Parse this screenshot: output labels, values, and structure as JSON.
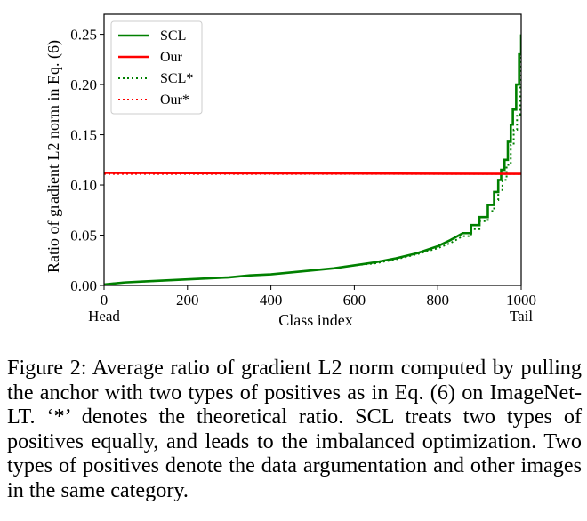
{
  "chart_data": {
    "type": "line",
    "xlabel": "Class index",
    "ylabel": "Ratio of gradient L2 norm in Eq. (6)",
    "xlim": [
      0,
      1000
    ],
    "ylim": [
      0,
      0.27
    ],
    "xticks": [
      0,
      200,
      400,
      600,
      800,
      1000
    ],
    "xtick_labels": [
      "0",
      "200",
      "400",
      "600",
      "800",
      "1000"
    ],
    "yticks": [
      0.0,
      0.05,
      0.1,
      0.15,
      0.2,
      0.25
    ],
    "ytick_labels": [
      "0.00",
      "0.05",
      "0.10",
      "0.15",
      "0.20",
      "0.25"
    ],
    "x_annotations": [
      {
        "x": 0,
        "text": "Head"
      },
      {
        "x": 1000,
        "text": "Tail"
      }
    ],
    "legend_position": "upper-left",
    "series": [
      {
        "name": "SCL",
        "color": "#008000",
        "style": "solid",
        "x": [
          0,
          50,
          100,
          150,
          200,
          250,
          300,
          350,
          400,
          450,
          500,
          550,
          600,
          650,
          700,
          750,
          800,
          830,
          860,
          880,
          900,
          920,
          935,
          945,
          952,
          960,
          968,
          975,
          980,
          988,
          995,
          1000
        ],
        "values": [
          0.001,
          0.003,
          0.004,
          0.005,
          0.006,
          0.007,
          0.008,
          0.01,
          0.011,
          0.013,
          0.015,
          0.017,
          0.02,
          0.023,
          0.027,
          0.032,
          0.039,
          0.045,
          0.052,
          0.06,
          0.068,
          0.08,
          0.093,
          0.105,
          0.115,
          0.125,
          0.143,
          0.16,
          0.175,
          0.2,
          0.23,
          0.25
        ]
      },
      {
        "name": "Our",
        "color": "#ff0000",
        "style": "solid",
        "x": [
          0,
          1000
        ],
        "values": [
          0.112,
          0.111
        ]
      },
      {
        "name": "SCL*",
        "color": "#008000",
        "style": "dotted",
        "x": [
          0,
          50,
          100,
          150,
          200,
          250,
          300,
          350,
          400,
          450,
          500,
          550,
          600,
          650,
          700,
          750,
          800,
          830,
          860,
          880,
          900,
          920,
          935,
          945,
          955,
          965,
          975,
          982,
          990,
          997,
          1000
        ],
        "values": [
          0.001,
          0.003,
          0.004,
          0.005,
          0.006,
          0.007,
          0.008,
          0.01,
          0.011,
          0.013,
          0.015,
          0.017,
          0.02,
          0.022,
          0.026,
          0.031,
          0.037,
          0.042,
          0.049,
          0.056,
          0.064,
          0.074,
          0.085,
          0.095,
          0.105,
          0.12,
          0.14,
          0.155,
          0.17,
          0.2,
          0.23
        ]
      },
      {
        "name": "Our*",
        "color": "#ff0000",
        "style": "dotted",
        "x": [
          0,
          1000
        ],
        "values": [
          0.111,
          0.111
        ]
      }
    ]
  },
  "caption": {
    "text": "Figure 2: Average ratio of gradient L2 norm computed by pulling the anchor with two types of positives as in Eq. (6) on ImageNet-LT. ‘*’ denotes the theoretical ratio. SCL treats two types of positives equally, and leads to the imbalanced optimization. Two types of positives denote the data argumentation and other images in the same category."
  }
}
